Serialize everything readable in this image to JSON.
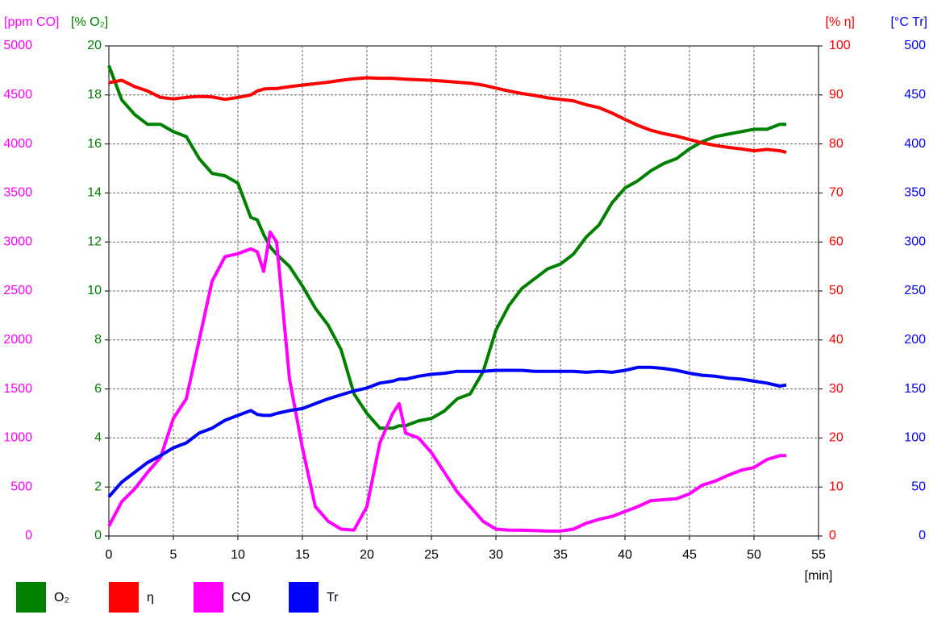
{
  "chart_data": {
    "type": "line",
    "x": [
      0,
      1,
      2,
      3,
      4,
      5,
      6,
      7,
      8,
      9,
      10,
      11,
      11.5,
      12,
      12.5,
      13,
      14,
      15,
      16,
      17,
      18,
      19,
      20,
      21,
      22,
      22.5,
      23,
      24,
      25,
      26,
      27,
      28,
      29,
      30,
      31,
      32,
      33,
      34,
      35,
      36,
      37,
      38,
      39,
      40,
      41,
      42,
      43,
      44,
      45,
      46,
      47,
      48,
      49,
      50,
      51,
      52,
      52.5
    ],
    "xlim": [
      0,
      55
    ],
    "xticks": [
      0,
      5,
      10,
      15,
      20,
      25,
      30,
      35,
      40,
      45,
      50,
      55
    ],
    "xlabel": "[min]",
    "grid": true,
    "axes": [
      {
        "label": "[ppm CO]",
        "color": "#ff00ff",
        "ylim": [
          0,
          5000
        ],
        "yticks": [
          0,
          500,
          1000,
          1500,
          2000,
          2500,
          3000,
          3500,
          4000,
          4500,
          5000
        ]
      },
      {
        "label": "[% O₂]",
        "color": "#008000",
        "ylim": [
          0,
          20
        ],
        "yticks": [
          0,
          2,
          4,
          6,
          8,
          10,
          12,
          14,
          16,
          18,
          20
        ]
      },
      {
        "label": "[% η]",
        "color": "#ff0000",
        "ylim": [
          0,
          100
        ],
        "yticks": [
          0,
          10,
          20,
          30,
          40,
          50,
          60,
          70,
          80,
          90,
          100
        ]
      },
      {
        "label": "[°C Tr]",
        "color": "#0000ff",
        "ylim": [
          0,
          500
        ],
        "yticks": [
          0,
          50,
          100,
          150,
          200,
          250,
          300,
          350,
          400,
          450,
          500
        ]
      }
    ],
    "series": [
      {
        "name": "O₂",
        "color": "#008000",
        "axis": 1,
        "values": [
          19.2,
          17.8,
          17.2,
          16.8,
          16.8,
          16.5,
          16.3,
          15.4,
          14.8,
          14.7,
          14.4,
          13.0,
          12.9,
          12.3,
          11.8,
          11.5,
          11.0,
          10.2,
          9.3,
          8.6,
          7.6,
          5.8,
          5.0,
          4.4,
          4.4,
          4.5,
          4.5,
          4.7,
          4.8,
          5.1,
          5.6,
          5.8,
          6.7,
          8.4,
          9.4,
          10.1,
          10.5,
          10.9,
          11.1,
          11.5,
          12.2,
          12.7,
          13.6,
          14.2,
          14.5,
          14.9,
          15.2,
          15.4,
          15.8,
          16.1,
          16.3,
          16.4,
          16.5,
          16.6,
          16.6,
          16.8,
          16.8
        ]
      },
      {
        "name": "η",
        "color": "#ff0000",
        "axis": 2,
        "values": [
          92.5,
          93,
          91.7,
          90.8,
          89.5,
          89.2,
          89.5,
          89.7,
          89.6,
          89.1,
          89.5,
          90,
          90.8,
          91.2,
          91.3,
          91.3,
          91.7,
          92,
          92.3,
          92.6,
          93,
          93.3,
          93.5,
          93.4,
          93.4,
          93.3,
          93.2,
          93.1,
          93,
          92.8,
          92.6,
          92.4,
          92,
          91.4,
          90.8,
          90.3,
          89.9,
          89.4,
          89.1,
          88.8,
          88,
          87.4,
          86.3,
          85,
          83.8,
          82.8,
          82.1,
          81.6,
          80.9,
          80.2,
          79.7,
          79.3,
          79,
          78.6,
          78.9,
          78.6,
          78.3
        ]
      },
      {
        "name": "CO",
        "color": "#ff00ff",
        "axis": 0,
        "values": [
          100,
          350,
          480,
          650,
          800,
          1200,
          1400,
          2000,
          2600,
          2850,
          2880,
          2930,
          2900,
          2700,
          3100,
          3000,
          1600,
          900,
          300,
          150,
          70,
          60,
          300,
          950,
          1250,
          1350,
          1050,
          1000,
          850,
          650,
          450,
          300,
          150,
          70,
          60,
          60,
          55,
          50,
          50,
          70,
          130,
          170,
          200,
          250,
          300,
          360,
          370,
          380,
          430,
          520,
          560,
          620,
          670,
          700,
          780,
          820,
          820
        ]
      },
      {
        "name": "Tr",
        "color": "#0000ff",
        "axis": 3,
        "values": [
          40,
          55,
          65,
          75,
          82,
          90,
          95,
          105,
          110,
          118,
          123,
          128,
          124,
          123,
          123,
          125,
          128,
          130,
          135,
          140,
          144,
          148,
          151,
          156,
          158,
          160,
          160,
          163,
          165,
          166,
          168,
          168,
          168,
          169,
          169,
          169,
          168,
          168,
          168,
          168,
          167,
          168,
          167,
          169,
          172,
          172,
          171,
          169,
          166,
          164,
          163,
          161,
          160,
          158,
          156,
          153,
          154
        ]
      }
    ]
  }
}
